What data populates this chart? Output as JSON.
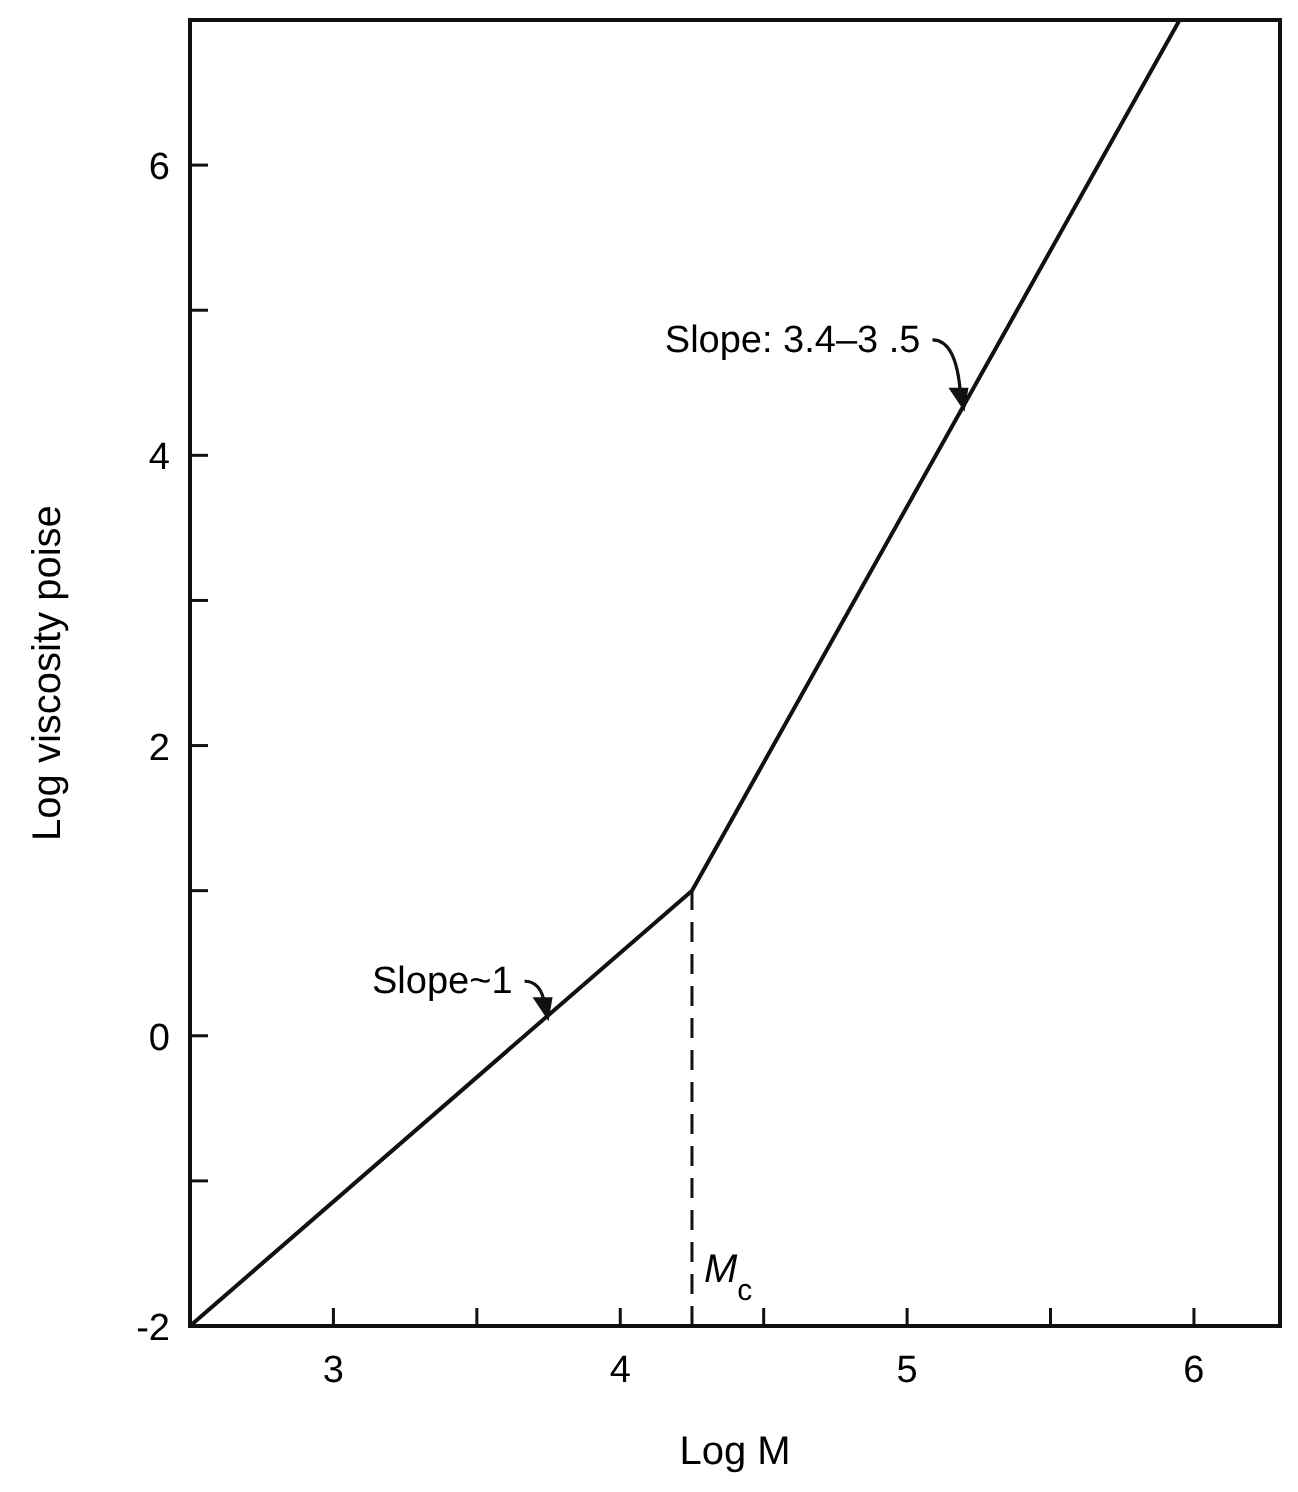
{
  "chart_data": {
    "type": "line",
    "xlabel": "Log M",
    "ylabel": "Log viscosity poise",
    "x": [
      2.5,
      4.25,
      5.95
    ],
    "series": [
      {
        "color": "#111111",
        "values": [
          -2,
          1,
          7
        ]
      }
    ],
    "xlim": [
      2.5,
      6.3
    ],
    "ylim": [
      -2,
      7
    ],
    "xticks": [
      3,
      {
        "value": 3.5,
        "label": null
      },
      4,
      {
        "value": 4.5,
        "label": null
      },
      5,
      {
        "value": 5.5,
        "label": null
      },
      6
    ],
    "yticks": [
      -2,
      {
        "value": -1,
        "label": null
      },
      0,
      {
        "value": 1,
        "label": null
      },
      2,
      {
        "value": 3,
        "label": null
      },
      4,
      {
        "value": 5,
        "label": null
      },
      6
    ],
    "ref_lines": [
      {
        "axis": "x",
        "value": 4.25,
        "label": "M$_{c}$",
        "line_style": "dashed"
      }
    ],
    "annotations": [
      {
        "text": "Slope: 3.4–3 .5",
        "x": 5.2,
        "y": 4.3
      },
      {
        "text": "Slope~1",
        "x": 3.75,
        "y": 0.1
      }
    ],
    "marker": "none",
    "line_style": "solid",
    "grid": false
  }
}
